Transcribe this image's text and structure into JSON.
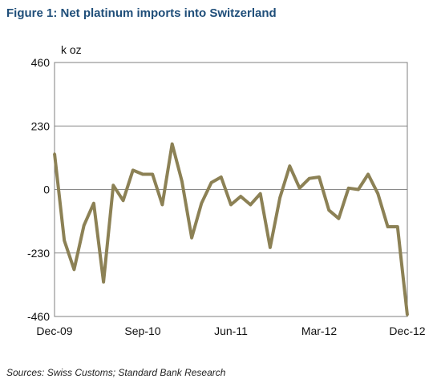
{
  "figure": {
    "title": "Figure 1: Net platinum imports into Switzerland",
    "source": "Sources: Swiss Customs; Standard Bank Research"
  },
  "chart_data": {
    "type": "line",
    "unit_label": "k oz",
    "ylim": [
      -460,
      460
    ],
    "yticks": [
      460,
      230,
      0,
      -230,
      -460
    ],
    "ytick_labels": [
      "460",
      "230",
      "0",
      "-230",
      "-460"
    ],
    "xlim": [
      "2009-12",
      "2012-12"
    ],
    "xtick_labels": [
      "Dec-09",
      "Sep-10",
      "Jun-11",
      "Mar-12",
      "Dec-12"
    ],
    "grid": true,
    "line_color": "#8c8155",
    "series": [
      {
        "x": [
          "2009-12",
          "2010-01",
          "2010-02",
          "2010-03",
          "2010-04",
          "2010-05",
          "2010-06",
          "2010-07",
          "2010-08",
          "2010-09",
          "2010-10",
          "2010-11",
          "2010-12",
          "2011-01",
          "2011-02",
          "2011-03",
          "2011-04",
          "2011-05",
          "2011-06",
          "2011-07",
          "2011-08",
          "2011-09",
          "2011-10",
          "2011-11",
          "2011-12",
          "2012-01",
          "2012-02",
          "2012-03",
          "2012-04",
          "2012-05",
          "2012-06",
          "2012-07",
          "2012-08",
          "2012-09",
          "2012-10",
          "2012-11",
          "2012-12"
        ],
        "values": [
          130,
          -185,
          -290,
          -130,
          -50,
          -335,
          15,
          -40,
          70,
          55,
          55,
          -55,
          165,
          30,
          -175,
          -50,
          25,
          45,
          -55,
          -25,
          -55,
          -15,
          -210,
          -30,
          85,
          5,
          40,
          45,
          -75,
          -105,
          5,
          0,
          55,
          -15,
          -135,
          -135,
          -455
        ]
      }
    ]
  }
}
